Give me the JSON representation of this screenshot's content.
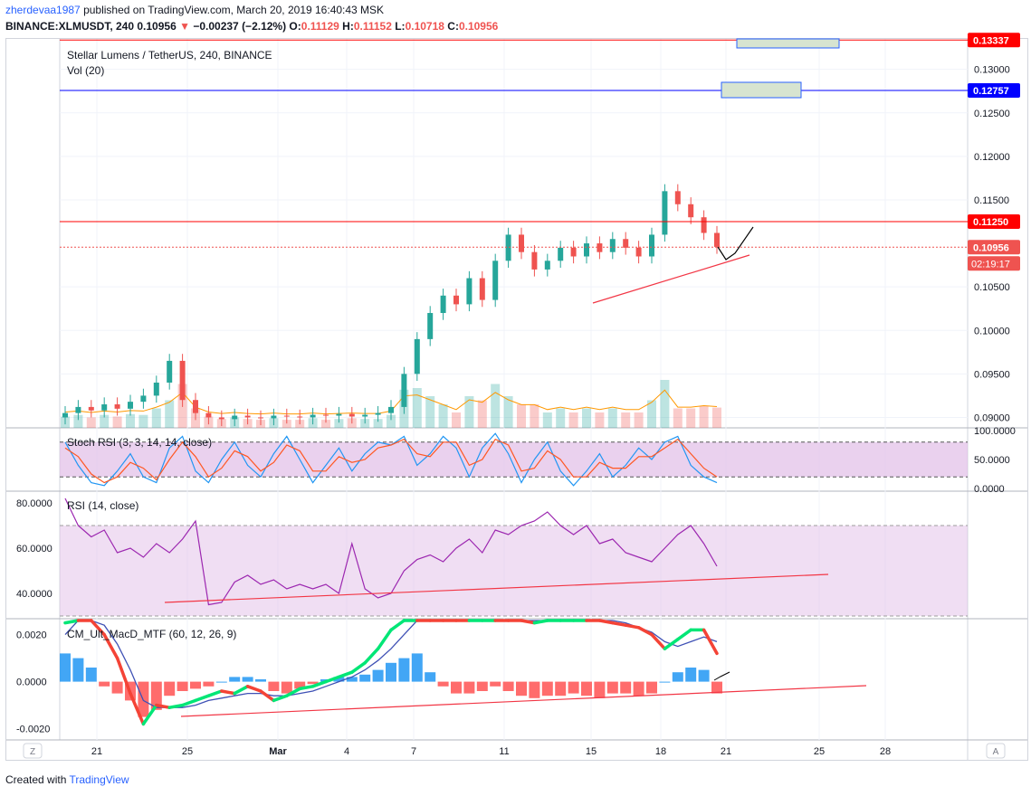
{
  "header": {
    "user": "zherdevaa1987",
    "published": " published on TradingView.com, March 20, 2019 16:40:43 MSK",
    "symbol": "BINANCE:XLMUSDT, 240",
    "last": "0.10956",
    "change_arrow": "▼",
    "change": "−0.00237 (−2.12%)",
    "ohlc": {
      "o": "0.11129",
      "h": "0.11152",
      "l": "0.10718",
      "c": "0.10956"
    }
  },
  "colors": {
    "up": "#26a69a",
    "down": "#ef5350",
    "rsi": "#9c27b0",
    "stoch_k": "#2196f3",
    "stoch_d": "#ff5722",
    "pane_fill": "#e1bee7",
    "macd_up": "#00e676",
    "macd_dn": "#f44336",
    "hist_up": "#2196f3",
    "hist_dn": "#ff5252"
  },
  "chart_data": [
    {
      "type": "candlestick",
      "title": "Stellar Lumens / TetherUS, 240, BINANCE",
      "volume_label": "Vol (20)",
      "price_axis": [
        "0.13000",
        "0.12500",
        "0.12000",
        "0.11500",
        "0.10500",
        "0.10000",
        "0.09500",
        "0.09000"
      ],
      "ylim": [
        0.0888,
        0.1335
      ],
      "levels": [
        {
          "value": 0.13337,
          "label": "0.13337",
          "color": "#ff0000"
        },
        {
          "value": 0.12757,
          "label": "0.12757",
          "color": "#0000ff"
        },
        {
          "value": 0.1125,
          "label": "0.11250",
          "color": "#ff0000"
        },
        {
          "value": 0.10956,
          "label": "0.10956",
          "color": "#ef5350"
        }
      ],
      "countdown": "02:19:17",
      "x_axis": [
        "21",
        "25",
        "Mar",
        "4",
        "7",
        "11",
        "15",
        "18",
        "21",
        "25",
        "28"
      ],
      "price_path_approx": [
        0.0905,
        0.0912,
        0.0908,
        0.0915,
        0.091,
        0.0918,
        0.0925,
        0.094,
        0.0965,
        0.092,
        0.0905,
        0.09,
        0.0898,
        0.0902,
        0.09,
        0.0899,
        0.0902,
        0.0901,
        0.09,
        0.0903,
        0.0902,
        0.0904,
        0.0901,
        0.0903,
        0.0905,
        0.0912,
        0.095,
        0.099,
        0.102,
        0.104,
        0.103,
        0.106,
        0.1035,
        0.108,
        0.111,
        0.109,
        0.107,
        0.108,
        0.1095,
        0.1085,
        0.11,
        0.109,
        0.1105,
        0.1095,
        0.1085,
        0.111,
        0.116,
        0.1145,
        0.113,
        0.1112,
        0.1096
      ]
    },
    {
      "type": "line",
      "title": "Stoch RSI (3, 3, 14, 14, close)",
      "y_axis": [
        "100.0000",
        "50.0000",
        "0.0000"
      ],
      "ylim": [
        0,
        100
      ],
      "bands": [
        80,
        20
      ],
      "k": [
        80,
        40,
        10,
        5,
        30,
        60,
        20,
        10,
        70,
        90,
        30,
        10,
        50,
        80,
        40,
        20,
        60,
        90,
        50,
        10,
        40,
        70,
        30,
        60,
        80,
        75,
        90,
        40,
        60,
        90,
        70,
        20,
        70,
        95,
        60,
        10,
        50,
        80,
        30,
        5,
        30,
        60,
        20,
        40,
        70,
        50,
        80,
        90,
        40,
        20,
        10
      ],
      "d": [
        70,
        55,
        25,
        10,
        20,
        45,
        35,
        15,
        50,
        80,
        55,
        20,
        35,
        65,
        55,
        30,
        45,
        75,
        65,
        30,
        30,
        55,
        45,
        50,
        70,
        75,
        85,
        60,
        55,
        80,
        80,
        40,
        50,
        85,
        75,
        30,
        35,
        65,
        50,
        20,
        20,
        45,
        35,
        35,
        55,
        55,
        70,
        85,
        60,
        35,
        20
      ]
    },
    {
      "type": "line",
      "title": "RSI (14, close)",
      "y_axis": [
        "80.0000",
        "60.0000",
        "40.0000"
      ],
      "ylim": [
        30,
        84
      ],
      "bands": [
        70,
        30
      ],
      "values": [
        82,
        70,
        65,
        68,
        58,
        60,
        56,
        62,
        58,
        64,
        72,
        35,
        36,
        45,
        48,
        44,
        46,
        42,
        44,
        42,
        44,
        40,
        62,
        42,
        38,
        40,
        50,
        55,
        57,
        54,
        60,
        64,
        58,
        68,
        66,
        70,
        72,
        76,
        70,
        66,
        70,
        62,
        64,
        58,
        56,
        54,
        60,
        66,
        70,
        62,
        52
      ]
    },
    {
      "type": "line",
      "title": "CM_Ult_MacD_MTF (60, 12, 26, 9)",
      "y_axis": [
        "0.0020",
        "0.0000",
        "-0.0020"
      ],
      "ylim": [
        -0.0024,
        0.0026
      ],
      "macd": [
        0.0025,
        0.003,
        0.0026,
        0.002,
        0.001,
        -0.0005,
        -0.0018,
        -0.001,
        -0.0011,
        -0.001,
        -0.0008,
        -0.0006,
        -0.0004,
        -0.0005,
        -0.0002,
        -0.0004,
        -0.0008,
        -0.0006,
        -0.0003,
        -0.0002,
        0.0,
        0.0002,
        0.0004,
        0.0008,
        0.0014,
        0.0022,
        0.003,
        0.0035,
        0.0034,
        0.003,
        0.0027,
        0.0026,
        0.0028,
        0.003,
        0.0028,
        0.0026,
        0.0025,
        0.0027,
        0.0028,
        0.0029,
        0.003,
        0.0026,
        0.0025,
        0.0024,
        0.0023,
        0.002,
        0.0014,
        0.0018,
        0.0022,
        0.0022,
        0.0012
      ],
      "signal": [
        0.002,
        0.0027,
        0.0028,
        0.0024,
        0.0016,
        0.0005,
        -0.0008,
        -0.0011,
        -0.0011,
        -0.0011,
        -0.001,
        -0.0008,
        -0.0007,
        -0.0006,
        -0.0005,
        -0.0005,
        -0.0006,
        -0.0006,
        -0.0005,
        -0.0004,
        -0.0002,
        0.0,
        0.0002,
        0.0005,
        0.0009,
        0.0014,
        0.002,
        0.0026,
        0.003,
        0.0031,
        0.003,
        0.0029,
        0.0029,
        0.003,
        0.003,
        0.0029,
        0.0028,
        0.0028,
        0.0028,
        0.0029,
        0.003,
        0.0029,
        0.0027,
        0.0025,
        0.0023,
        0.0021,
        0.0017,
        0.0015,
        0.0017,
        0.0019,
        0.0017
      ],
      "hist": [
        0.0012,
        0.001,
        0.0006,
        -0.0002,
        -0.0005,
        -0.0008,
        -0.0015,
        -0.0012,
        -0.0006,
        -0.0004,
        -0.0003,
        -0.0002,
        0.0,
        0.0002,
        0.0002,
        0.0001,
        -0.0004,
        -0.0005,
        -0.0003,
        -0.0001,
        0.0001,
        0.0002,
        0.0002,
        0.0003,
        0.0005,
        0.0008,
        0.001,
        0.0012,
        0.0004,
        -0.0002,
        -0.0005,
        -0.0005,
        -0.0004,
        -0.0002,
        -0.0004,
        -0.0006,
        -0.0007,
        -0.0006,
        -0.0006,
        -0.0005,
        -0.0006,
        -0.0007,
        -0.0005,
        -0.0005,
        -0.0006,
        -0.0005,
        0.0,
        0.0004,
        0.0006,
        0.0005,
        -0.0005
      ]
    }
  ],
  "footer": {
    "created": "Created with",
    "brand": "TradingView"
  }
}
